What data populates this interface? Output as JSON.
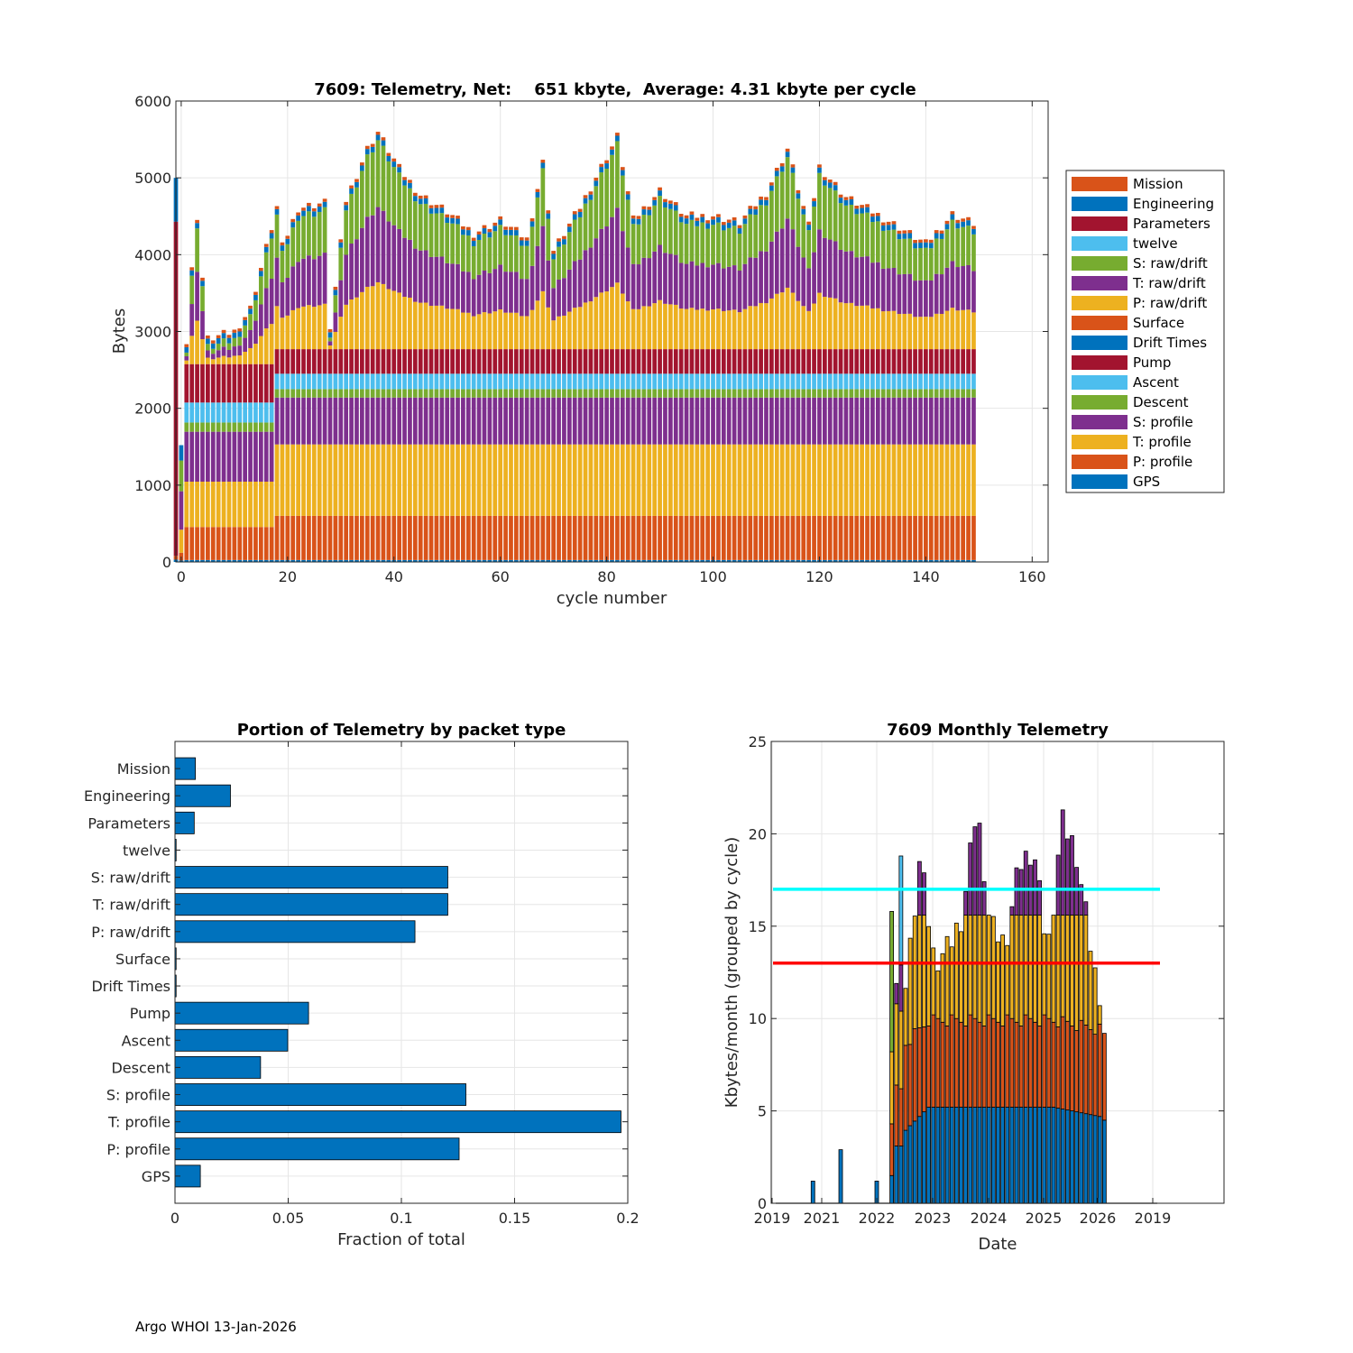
{
  "chart_data": [
    {
      "type": "bar",
      "stacked": true,
      "title": "7609: Telemetry, Net:    651 kbyte,  Average: 4.31 kbyte per cycle",
      "xlabel": "cycle number",
      "ylabel": "Bytes",
      "xlim": [
        -1,
        163
      ],
      "ylim": [
        0,
        6000
      ],
      "xticks": [
        "0",
        "20",
        "40",
        "60",
        "80",
        "100",
        "120",
        "140",
        "160"
      ],
      "yticks": [
        "0",
        "1000",
        "2000",
        "3000",
        "4000",
        "5000",
        "6000"
      ],
      "grid": true,
      "legend_position": "outside-right",
      "legend": [
        {
          "name": "Mission",
          "color": "#D95319"
        },
        {
          "name": "Engineering",
          "color": "#0072BD"
        },
        {
          "name": "Parameters",
          "color": "#A2142F"
        },
        {
          "name": "twelve",
          "color": "#4DBEEE"
        },
        {
          "name": "S: raw/drift",
          "color": "#77AC30"
        },
        {
          "name": "T: raw/drift",
          "color": "#7E2F8E"
        },
        {
          "name": "P: raw/drift",
          "color": "#EDB120"
        },
        {
          "name": "Surface",
          "color": "#D95319"
        },
        {
          "name": "Drift Times",
          "color": "#0072BD"
        },
        {
          "name": "Pump",
          "color": "#A2142F"
        },
        {
          "name": "Ascent",
          "color": "#4DBEEE"
        },
        {
          "name": "Descent",
          "color": "#77AC30"
        },
        {
          "name": "S: profile",
          "color": "#7E2F8E"
        },
        {
          "name": "T: profile",
          "color": "#EDB120"
        },
        {
          "name": "P: profile",
          "color": "#D95319"
        },
        {
          "name": "GPS",
          "color": "#0072BD"
        }
      ],
      "totals_sampled": {
        "cycles": [
          -1,
          0,
          1,
          2,
          3,
          5,
          10,
          13,
          18,
          19,
          22,
          27,
          28,
          31,
          35,
          37,
          41,
          45,
          50,
          55,
          60,
          65,
          68,
          70,
          75,
          82,
          85,
          90,
          95,
          100,
          105,
          110,
          114,
          118,
          120,
          125,
          130,
          135,
          140,
          145,
          149
        ],
        "values": [
          5000,
          1520,
          2600,
          3800,
          4500,
          2900,
          3000,
          3300,
          4620,
          4100,
          4610,
          4680,
          3000,
          4710,
          5380,
          5600,
          5120,
          4780,
          4560,
          4280,
          4450,
          4200,
          5200,
          4050,
          4620,
          5540,
          4450,
          4840,
          4500,
          4510,
          4420,
          4810,
          5380,
          4370,
          5150,
          4750,
          4560,
          4360,
          4140,
          4530,
          4410
        ]
      }
    },
    {
      "type": "bar",
      "orientation": "horizontal",
      "title": "Portion of Telemetry by packet type",
      "xlabel": "Fraction of total",
      "ylabel": "",
      "xlim": [
        0,
        0.2
      ],
      "xticks": [
        "0",
        "0.05",
        "0.1",
        "0.15",
        "0.2"
      ],
      "grid": true,
      "categories": [
        "Mission",
        "Engineering",
        "Parameters",
        "twelve",
        "S: raw/drift",
        "T: raw/drift",
        "P: raw/drift",
        "Surface",
        "Drift Times",
        "Pump",
        "Ascent",
        "Descent",
        "S: profile",
        "T: profile",
        "P: profile",
        "GPS"
      ],
      "values": [
        0.009,
        0.0245,
        0.0085,
        0.0005,
        0.1205,
        0.1205,
        0.106,
        0.0005,
        0.0005,
        0.059,
        0.0498,
        0.0378,
        0.1285,
        0.197,
        0.1255,
        0.0112
      ],
      "color": "#0072BD"
    },
    {
      "type": "bar",
      "stacked": true,
      "title": "7609 Monthly Telemetry",
      "xlabel": "Date",
      "ylabel": "Kbytes/month (grouped by cycle)",
      "ylim": [
        0,
        25
      ],
      "yticks": [
        "0",
        "5",
        "10",
        "15",
        "20",
        "25"
      ],
      "xticks": [
        "2019",
        "2021",
        "2022",
        "2023",
        "2024",
        "2025",
        "2026",
        "2019"
      ],
      "grid": true,
      "reference_lines": [
        {
          "value": 17,
          "color": "#00FFFF"
        },
        {
          "value": 13,
          "color": "#FF0000"
        }
      ],
      "early_bars": [
        {
          "date": 2020.85,
          "value": 1.2
        },
        {
          "date": 2021.35,
          "value": 2.9
        },
        {
          "date": 2022.0,
          "value": 1.2
        }
      ],
      "monthly_totals_sample": [
        15.8,
        11.9,
        18.8,
        13.1,
        13.8,
        15.6,
        21.5,
        15.0,
        14.0,
        18.3,
        19.2,
        13.6,
        20.7,
        19.1,
        14.1,
        9.2
      ]
    }
  ],
  "footer": "Argo WHOI 13-Jan-2026"
}
